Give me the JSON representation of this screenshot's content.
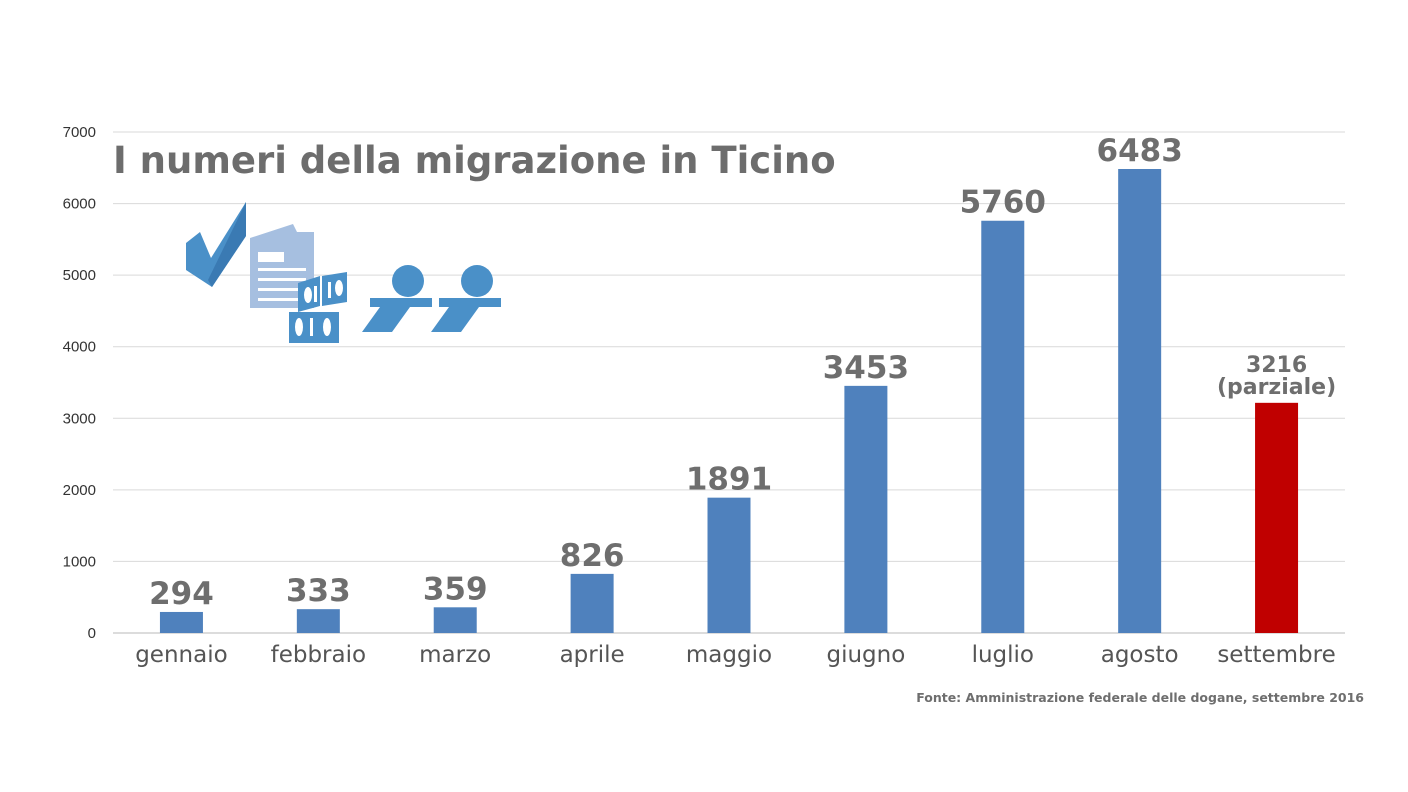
{
  "chart_data": {
    "type": "bar",
    "title": "I numeri della migrazione in Ticino",
    "categories": [
      "gennaio",
      "febbraio",
      "marzo",
      "aprile",
      "maggio",
      "giugno",
      "luglio",
      "agosto",
      "settembre"
    ],
    "values": [
      294,
      333,
      359,
      826,
      1891,
      3453,
      5760,
      6483,
      3216
    ],
    "data_labels": [
      "294",
      "333",
      "359",
      "826",
      "1891",
      "3453",
      "5760",
      "6483",
      "3216"
    ],
    "partial_note": "(parziale)",
    "ylim": [
      0,
      7000
    ],
    "yticks": [
      0,
      1000,
      2000,
      3000,
      4000,
      5000,
      6000,
      7000
    ],
    "grid": true,
    "colors": {
      "bar": "#4f81bd",
      "highlight": "#c00000",
      "icon_dark": "#4a90c8",
      "icon_light": "#a6bfe0"
    },
    "source": "Fonte: Amministrazione federale delle dogane, settembre 2016",
    "icons": [
      "checkmark-icon",
      "document-icon",
      "binary-code-icon",
      "person-icon"
    ]
  }
}
